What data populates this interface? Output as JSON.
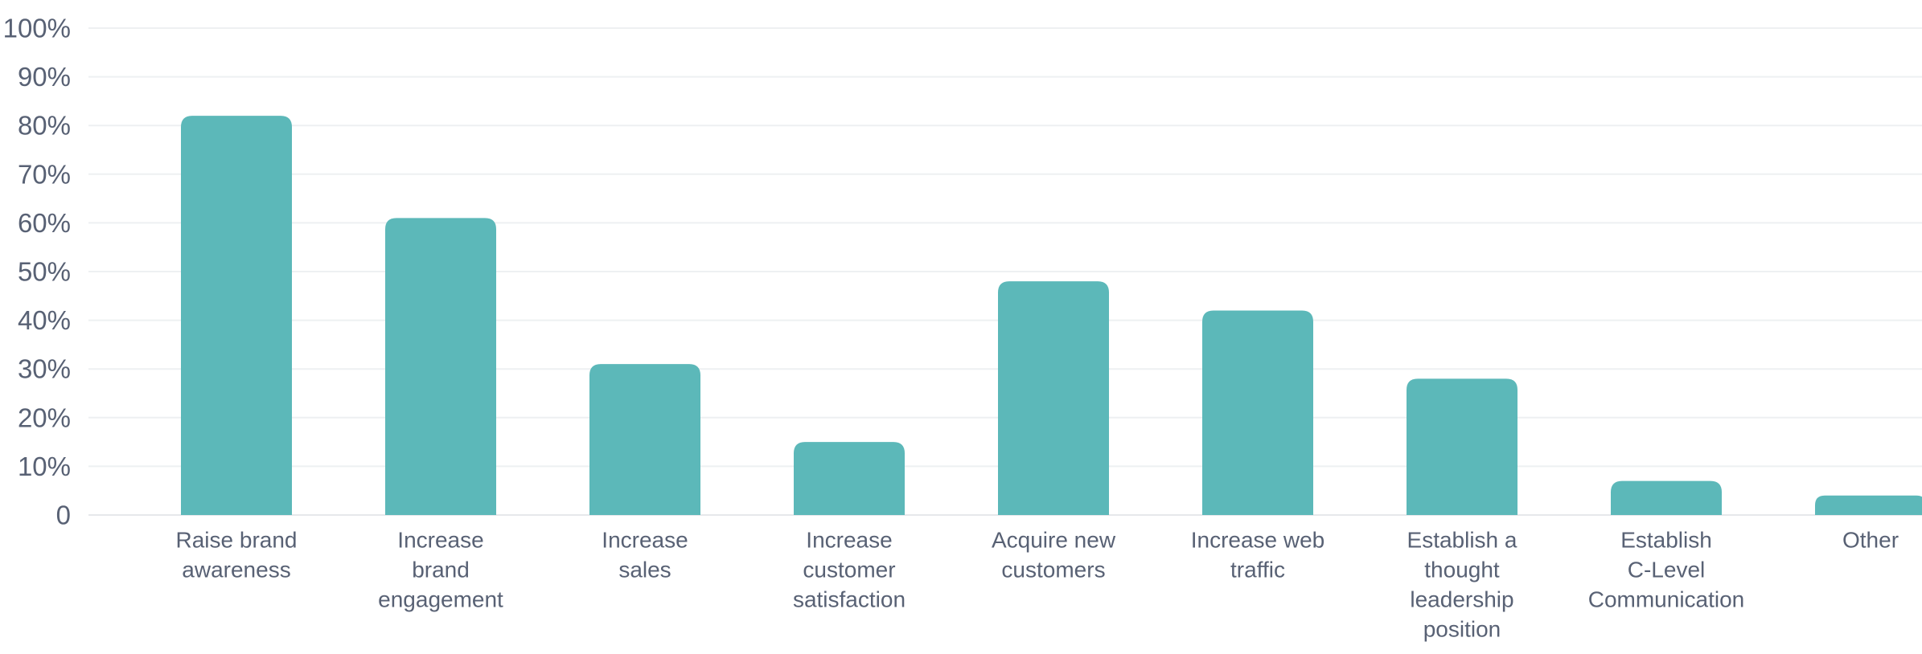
{
  "chart_data": {
    "type": "bar",
    "categories": [
      [
        "Raise brand",
        "awareness"
      ],
      [
        "Increase",
        "brand",
        "engagement"
      ],
      [
        "Increase",
        "sales"
      ],
      [
        "Increase",
        "customer",
        "satisfaction"
      ],
      [
        "Acquire new",
        "customers"
      ],
      [
        "Increase web",
        "traffic"
      ],
      [
        "Establish a",
        "thought",
        "leadership",
        "position"
      ],
      [
        "Establish",
        "C-Level",
        "Communication"
      ],
      [
        "Other"
      ]
    ],
    "values": [
      82,
      61,
      31,
      15,
      48,
      42,
      28,
      7,
      4
    ],
    "ylim": [
      0,
      100
    ],
    "yticks": [
      0,
      10,
      20,
      30,
      40,
      50,
      60,
      70,
      80,
      90,
      100
    ],
    "ytick_labels": [
      "0",
      "10%",
      "20%",
      "30%",
      "40%",
      "50%",
      "60%",
      "70%",
      "80%",
      "90%",
      "100%"
    ],
    "grid": true,
    "legend": "none",
    "bar_color": "#5cb8b9"
  }
}
